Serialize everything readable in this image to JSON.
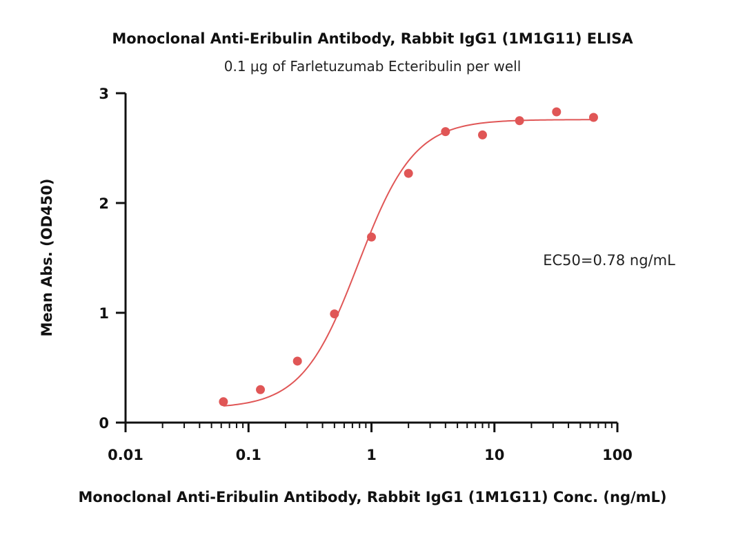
{
  "chart_data": {
    "type": "scatter",
    "title": "Monoclonal Anti-Eribulin Antibody, Rabbit IgG1 (1M1G11) ELISA",
    "subtitle": "0.1 μg of Farletuzumab Ecteribulin per well",
    "xlabel": "Monoclonal Anti-Eribulin Antibody, Rabbit IgG1 (1M1G11) Conc. (ng/mL)",
    "ylabel": "Mean Abs. (OD450)",
    "x_scale": "log",
    "xlim": [
      0.01,
      100
    ],
    "ylim": [
      0,
      3
    ],
    "x_ticks": [
      0.01,
      0.1,
      1,
      10,
      100
    ],
    "x_tick_labels": [
      "0.01",
      "0.1",
      "1",
      "10",
      "100"
    ],
    "y_ticks": [
      0,
      1,
      2,
      3
    ],
    "y_tick_labels": [
      "0",
      "1",
      "2",
      "3"
    ],
    "grid": false,
    "series": [
      {
        "color": "#e05656",
        "x": [
          0.0625,
          0.125,
          0.25,
          0.5,
          1,
          2,
          4,
          8,
          16,
          32,
          64
        ],
        "y": [
          0.19,
          0.3,
          0.56,
          0.99,
          1.69,
          2.27,
          2.65,
          2.62,
          2.75,
          2.83,
          2.78
        ]
      }
    ],
    "annotations": [
      {
        "text": "EC50=0.78 ng/mL",
        "position": "right-middle"
      }
    ]
  }
}
